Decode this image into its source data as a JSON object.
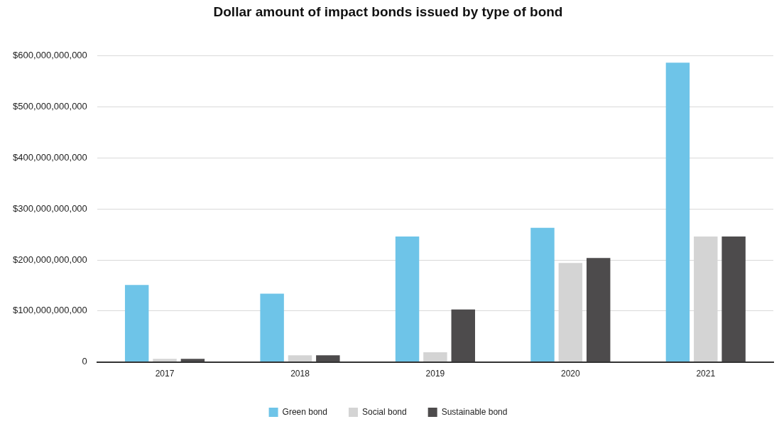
{
  "chart_data": {
    "type": "bar",
    "title": "Dollar amount of impact bonds issued by type of bond",
    "categories": [
      "2017",
      "2018",
      "2019",
      "2020",
      "2021"
    ],
    "series": [
      {
        "name": "Green bond",
        "color": "#6ec4e8",
        "values": [
          151000000000,
          134000000000,
          246000000000,
          263000000000,
          587000000000
        ]
      },
      {
        "name": "Social bond",
        "color": "#d4d4d4",
        "values": [
          6000000000,
          13000000000,
          19000000000,
          194000000000,
          246000000000
        ]
      },
      {
        "name": "Sustainable bond",
        "color": "#4d4b4c",
        "values": [
          6000000000,
          13000000000,
          103000000000,
          204000000000,
          246000000000
        ]
      }
    ],
    "ylim": [
      0,
      600000000000
    ],
    "yticks": [
      0,
      {
        "value": 100000000000,
        "label": "$100,000,000,000"
      },
      {
        "value": 200000000000,
        "label": "$200,000,000,000"
      },
      {
        "value": 300000000000,
        "label": "$300,000,000,000"
      },
      {
        "value": 400000000000,
        "label": "$400,000,000,000"
      },
      {
        "value": 500000000000,
        "label": "$500,000,000,000"
      },
      {
        "value": 600000000000,
        "label": "$600,000,000,000"
      }
    ],
    "grid": "y",
    "legend": "bottom"
  }
}
